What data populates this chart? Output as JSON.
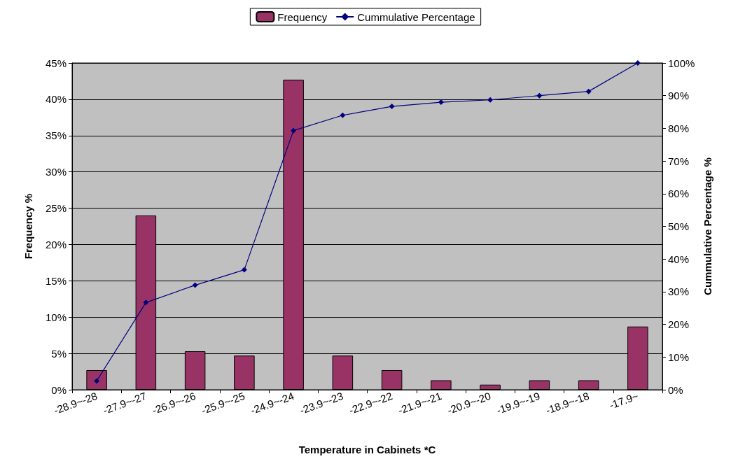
{
  "chart_data": {
    "type": "bar",
    "xlabel": "Temperature in Cabinets *C",
    "ylabel": "Frequency %",
    "y2label": "Cummulative Percentage %",
    "categories": [
      "-28.9~-28",
      "-27.9~-27",
      "-26.9~-26",
      "-25.9~-25",
      "-24.9~-24",
      "-23.9~-23",
      "-22.9~-22",
      "-21.9~-21",
      "-20.9~-20",
      "-19.9~-19",
      "-18.9~-18",
      "-17.9~"
    ],
    "series": [
      {
        "name": "Frequency",
        "color": "#993366",
        "values": [
          2.7,
          24.0,
          5.3,
          4.7,
          42.7,
          4.7,
          2.7,
          1.3,
          0.7,
          1.3,
          1.3,
          8.7
        ]
      },
      {
        "name": "Cummulative Percentage",
        "type": "line",
        "axis": "y2",
        "color": "#000080",
        "marker": "diamond",
        "values": [
          2.7,
          26.7,
          32.0,
          36.7,
          79.3,
          84.0,
          86.7,
          88.0,
          88.7,
          90.0,
          91.3,
          100
        ]
      }
    ],
    "ylim": [
      0,
      45
    ],
    "yticks": [
      {
        "value": 0,
        "label": "0%"
      },
      {
        "value": 5,
        "label": "5%"
      },
      {
        "value": 10,
        "label": "10%"
      },
      {
        "value": 15,
        "label": "15%"
      },
      {
        "value": 20,
        "label": "20%"
      },
      {
        "value": 25,
        "label": "25%"
      },
      {
        "value": 30,
        "label": "30%"
      },
      {
        "value": 35,
        "label": "35%"
      },
      {
        "value": 40,
        "label": "40%"
      },
      {
        "value": 45,
        "label": "45%"
      }
    ],
    "y2lim": [
      0,
      100
    ],
    "y2ticks": [
      {
        "value": 0,
        "label": "0%"
      },
      {
        "value": 10,
        "label": "10%"
      },
      {
        "value": 20,
        "label": "20%"
      },
      {
        "value": 30,
        "label": "30%"
      },
      {
        "value": 40,
        "label": "40%"
      },
      {
        "value": 50,
        "label": "50%"
      },
      {
        "value": 60,
        "label": "60%"
      },
      {
        "value": 70,
        "label": "70%"
      },
      {
        "value": 80,
        "label": "80%"
      },
      {
        "value": 90,
        "label": "90%"
      },
      {
        "value": 100,
        "label": "100%"
      }
    ],
    "grid": "y",
    "legend": "top"
  }
}
